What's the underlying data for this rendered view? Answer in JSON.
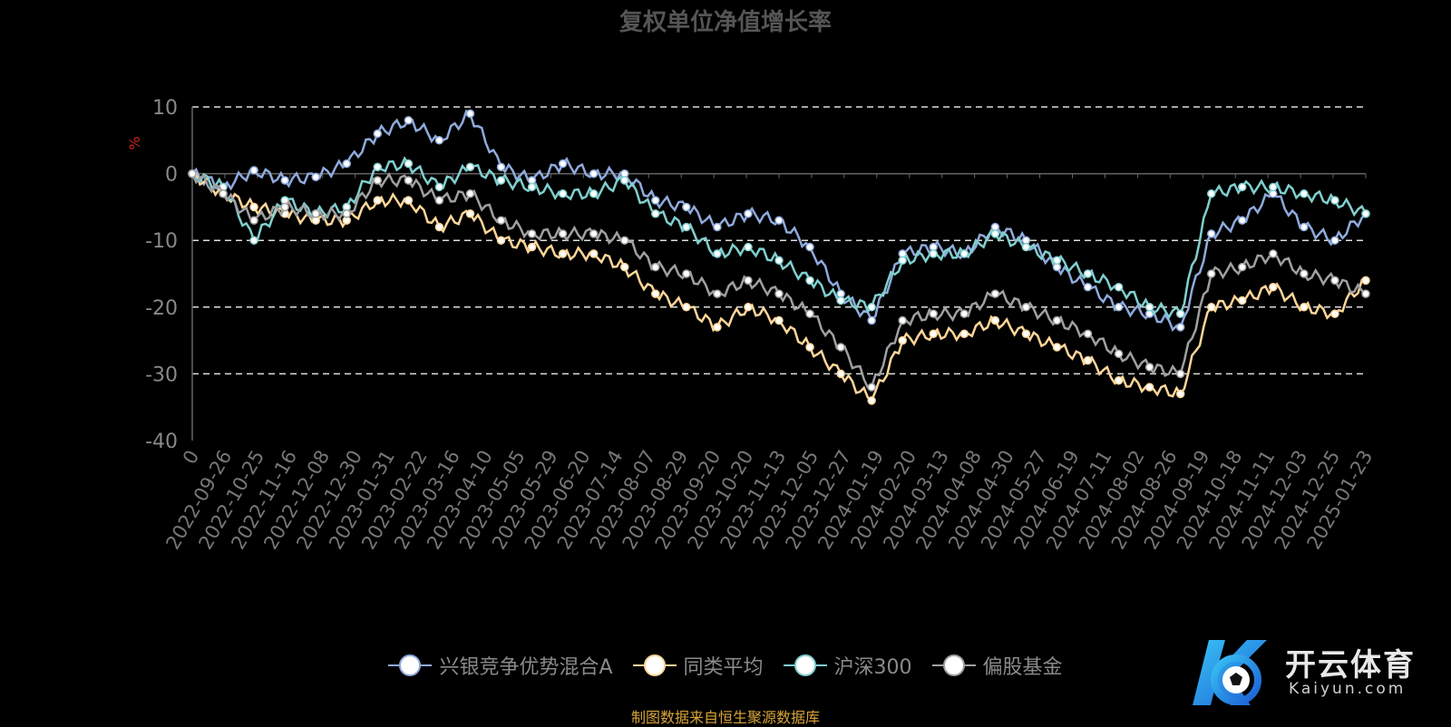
{
  "chart_data": {
    "type": "line",
    "title": "复权单位净值增长率",
    "ylabel": "%",
    "ylim": [
      -40,
      10
    ],
    "yticks": [
      10,
      0,
      -10,
      -20,
      -30,
      -40
    ],
    "grid": true,
    "legend_position": "bottom",
    "x_tick_labels": [
      "0",
      "2022-09-26",
      "2022-10-25",
      "2022-11-16",
      "2022-12-08",
      "2022-12-30",
      "2023-01-31",
      "2023-02-22",
      "2023-03-16",
      "2023-04-10",
      "2023-05-05",
      "2023-05-29",
      "2023-06-20",
      "2023-07-14",
      "2023-08-07",
      "2023-08-29",
      "2023-09-20",
      "2023-10-20",
      "2023-11-13",
      "2023-12-05",
      "2023-12-27",
      "2024-01-19",
      "2024-02-20",
      "2024-03-13",
      "2024-04-08",
      "2024-04-30",
      "2024-05-27",
      "2024-06-19",
      "2024-07-11",
      "2024-08-02",
      "2024-08-26",
      "2024-09-19",
      "2024-10-18",
      "2024-11-11",
      "2024-12-03",
      "2024-12-25",
      "2025-01-23"
    ],
    "series": [
      {
        "name": "兴银竞争优势混合A",
        "color": "#8faadc",
        "values": [
          0,
          -2,
          0.5,
          -1,
          -0.5,
          1.5,
          6,
          8,
          5,
          9,
          1,
          -1,
          1.5,
          0,
          0,
          -4,
          -5,
          -8,
          -6,
          -7,
          -11,
          -18,
          -22,
          -12,
          -11,
          -12,
          -8,
          -10,
          -14,
          -17,
          -20,
          -21,
          -23,
          -9,
          -7,
          -3,
          -8,
          -10,
          -6
        ]
      },
      {
        "name": "同类平均",
        "color": "#ffd699",
        "values": [
          0,
          -3,
          -5,
          -6,
          -7,
          -7,
          -4,
          -4,
          -8,
          -6,
          -10,
          -11,
          -12,
          -12,
          -14,
          -18,
          -20,
          -23,
          -20,
          -22,
          -26,
          -30,
          -34,
          -25,
          -24,
          -24,
          -22,
          -24,
          -26,
          -28,
          -31,
          -32,
          -33,
          -20,
          -19,
          -17,
          -20,
          -21,
          -16
        ]
      },
      {
        "name": "沪深300",
        "color": "#80cfcf",
        "values": [
          0,
          -2,
          -10,
          -4,
          -6,
          -5,
          1,
          1.5,
          -2,
          1,
          -1,
          -2,
          -3,
          -3,
          -1,
          -6,
          -8,
          -12,
          -11,
          -13,
          -16,
          -19,
          -20,
          -13,
          -12,
          -12,
          -9,
          -11,
          -13,
          -15,
          -17,
          -20,
          -21,
          -3,
          -2,
          -2,
          -3,
          -4,
          -6
        ]
      },
      {
        "name": "偏股基金",
        "color": "#a0a0a0",
        "values": [
          0,
          -3,
          -7,
          -5,
          -6,
          -6,
          -1,
          -1,
          -4,
          -3,
          -7,
          -9,
          -9,
          -9,
          -10,
          -14,
          -15,
          -18,
          -16,
          -18,
          -21,
          -26,
          -32,
          -22,
          -21,
          -21,
          -18,
          -20,
          -22,
          -24,
          -27,
          -29,
          -30,
          -15,
          -14,
          -12,
          -15,
          -16,
          -18
        ]
      }
    ]
  },
  "footer": {
    "source": "制图数据来自恒生聚源数据库"
  },
  "logo": {
    "name": "开云体育",
    "domain": "Kaiyun.com"
  }
}
